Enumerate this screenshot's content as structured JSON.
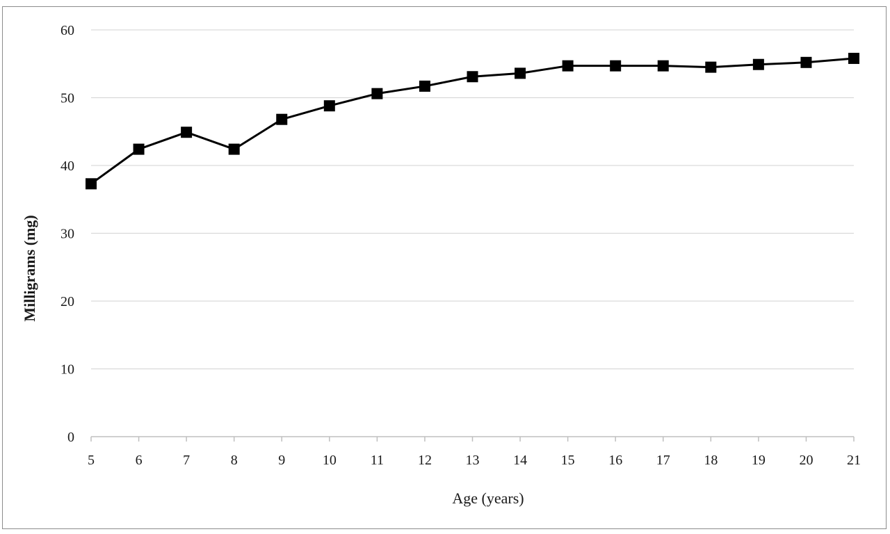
{
  "chart_data": {
    "type": "line",
    "title": "",
    "xlabel": "Age (years)",
    "ylabel": "Milligrams (mg)",
    "x": [
      5,
      6,
      7,
      8,
      9,
      10,
      11,
      12,
      13,
      14,
      15,
      16,
      17,
      18,
      19,
      20,
      21
    ],
    "categories": [
      "5",
      "6",
      "7",
      "8",
      "9",
      "10",
      "11",
      "12",
      "13",
      "14",
      "15",
      "16",
      "17",
      "18",
      "19",
      "20",
      "21"
    ],
    "series": [
      {
        "values": [
          37.3,
          42.4,
          44.9,
          42.4,
          46.8,
          48.8,
          50.6,
          51.7,
          53.1,
          53.6,
          54.7,
          54.7,
          54.7,
          54.5,
          54.9,
          55.2,
          55.8
        ],
        "color": "#000000",
        "marker": "square"
      }
    ],
    "yticks": [
      "0",
      "10",
      "20",
      "30",
      "40",
      "50",
      "60"
    ],
    "ylim": [
      0,
      60
    ],
    "grid": true,
    "legend": "none"
  }
}
